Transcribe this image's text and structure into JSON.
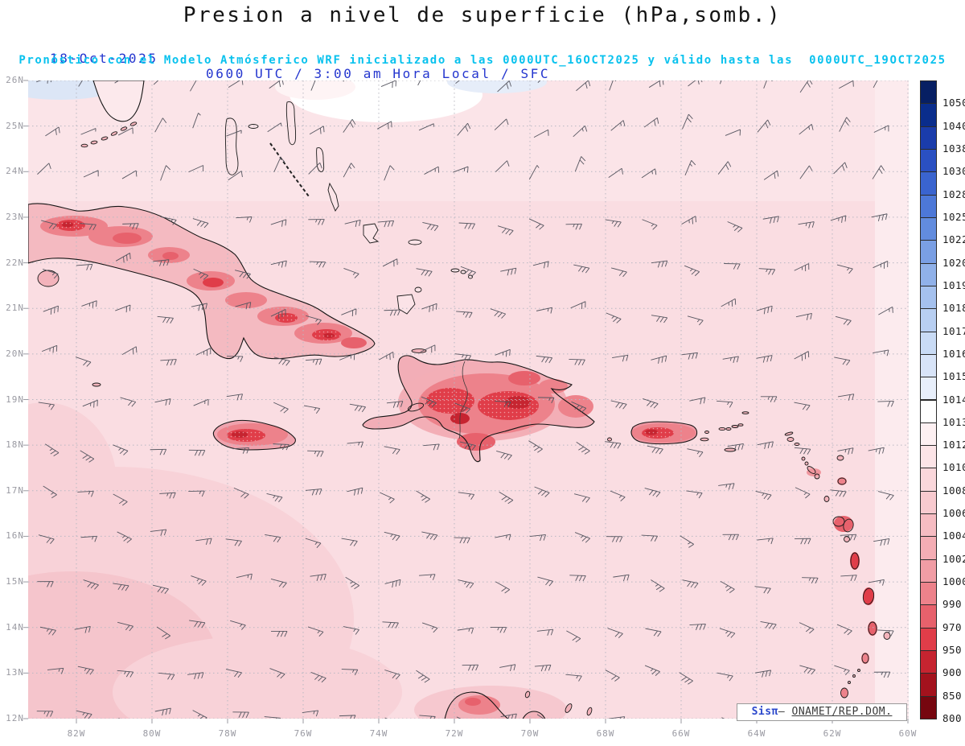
{
  "header": {
    "title": "Presion a nivel de superficie (hPa,somb.)",
    "date": "18-Oct-2025",
    "time_info": "0600 UTC / 3:00 am Hora Local / SFC",
    "forecast_info": "Pronóstico con el Modelo Atmósferico WRF inicializado a las 0000UTC_16OCT2025 y válido hasta las  0000UTC_19OCT2025"
  },
  "map": {
    "lat_labels": [
      "26N",
      "25N",
      "24N",
      "23N",
      "22N",
      "21N",
      "20N",
      "19N",
      "18N",
      "17N",
      "16N",
      "15N",
      "14N",
      "13N",
      "12N"
    ],
    "lon_labels": [
      "82W",
      "80W",
      "78W",
      "76W",
      "74W",
      "72W",
      "70W",
      "68W",
      "66W",
      "64W",
      "62W",
      "60W"
    ],
    "credit": {
      "brand": "Sisπ",
      "sep": "— ",
      "org": "ONAMET/REP.DOM."
    }
  },
  "colorbar": {
    "levels": [
      "1050",
      "1040",
      "1038",
      "1030",
      "1028",
      "1025",
      "1022",
      "1020",
      "1019",
      "1018",
      "1017",
      "1016",
      "1015",
      "1014",
      "1013",
      "1012",
      "1010",
      "1008",
      "1006",
      "1004",
      "1002",
      "1000",
      "990",
      "970",
      "950",
      "900",
      "850",
      "800"
    ],
    "colors": [
      "#071f63",
      "#0a2d8c",
      "#1a3cab",
      "#2a50c2",
      "#3a64cf",
      "#4d78d8",
      "#628cde",
      "#7a9fe4",
      "#90b1e9",
      "#a5c1ee",
      "#b8cff2",
      "#c9dbf5",
      "#d8e4f8",
      "#e8effb",
      "#ffffff",
      "#fdf0f2",
      "#fce4e7",
      "#fad7db",
      "#f8cacf",
      "#f6bcc2",
      "#f4adb4",
      "#f19da5",
      "#ed828b",
      "#e7616c",
      "#e03d49",
      "#c62430",
      "#a3121d",
      "#76060f"
    ]
  },
  "chart_data": {
    "type": "heatmap",
    "title": "Presion a nivel de superficie (hPa,somb.)",
    "variable": "surface pressure (hPa), shaded, with wind barbs",
    "model": "WRF",
    "initialized": "0000UTC_16OCT2025",
    "valid_until": "0000UTC_19OCT2025",
    "valid_time": "18-Oct-2025 0600 UTC / 3:00 am Hora Local / SFC",
    "lat_range": [
      "12N",
      "26N"
    ],
    "lon_range": [
      "82W",
      "60W"
    ],
    "scale_levels_hpa": [
      1050,
      1040,
      1038,
      1030,
      1028,
      1025,
      1022,
      1020,
      1019,
      1018,
      1017,
      1016,
      1015,
      1014,
      1013,
      1012,
      1010,
      1008,
      1006,
      1004,
      1002,
      1000,
      990,
      970,
      950,
      900,
      850,
      800
    ],
    "field_summary": "Basin mostly 1008-1012 hPa (pale pink); 1013-1015 hPa (white/pale blue) along northern edge near Florida and the Bahamas; lower pressure (~1000-950 hPa, red shading) over the islands: Cuba, Jamaica, Hispaniola, Puerto Rico, Guadeloupe, Dominica, Martinique; easterly trade-wind barbs across the domain",
    "watermark": "Sisπ — ONAMET/REP.DOM."
  }
}
